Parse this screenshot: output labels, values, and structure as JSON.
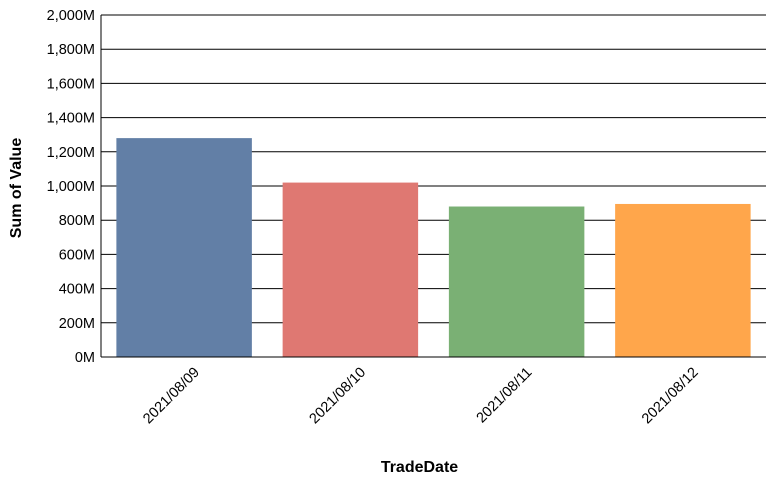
{
  "chart_data": {
    "type": "bar",
    "title": "",
    "xlabel": "TradeDate",
    "ylabel": "Sum of Value",
    "categories": [
      "2021/08/09",
      "2021/08/10",
      "2021/08/11",
      "2021/08/12"
    ],
    "values": [
      1280,
      1020,
      880,
      895
    ],
    "value_unit": "M",
    "colors": [
      "#627fa6",
      "#df7872",
      "#7ab074",
      "#ffa64b"
    ],
    "ylim": [
      0,
      2000
    ],
    "yticks": [
      0,
      200,
      400,
      600,
      800,
      1000,
      1200,
      1400,
      1600,
      1800,
      2000
    ],
    "ytick_labels": [
      "0M",
      "200M",
      "400M",
      "600M",
      "800M",
      "1,000M",
      "1,200M",
      "1,400M",
      "1,600M",
      "1,800M",
      "2,000M"
    ],
    "grid": true,
    "legend": "none"
  }
}
